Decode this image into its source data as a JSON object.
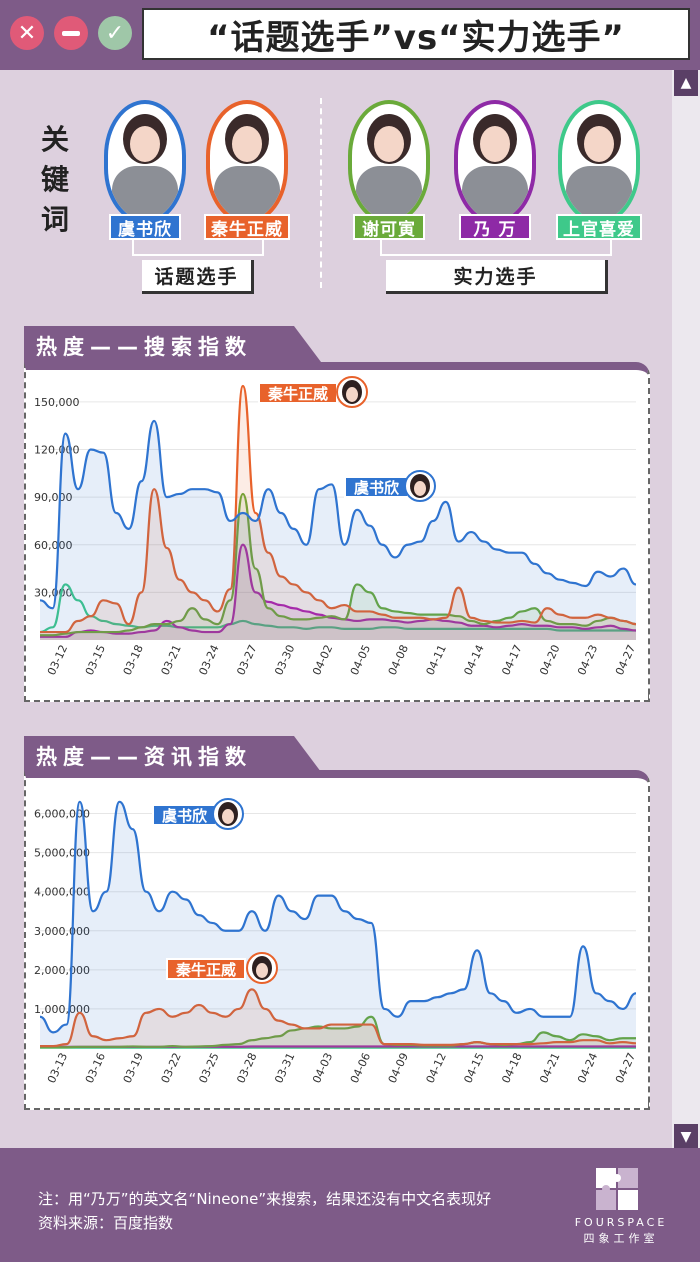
{
  "window": {
    "close_icon": "close-icon",
    "minimize_icon": "minimize-icon",
    "confirm_icon": "check-icon",
    "title": "“话题选手”vs“实力选手”"
  },
  "keyword_label": "关键词",
  "contestants": [
    {
      "name": "虞书欣",
      "color": "#2f74d0",
      "group": "topic"
    },
    {
      "name": "秦牛正威",
      "color": "#e8622b",
      "group": "topic"
    },
    {
      "name": "谢可寅",
      "color": "#6aaa3a",
      "group": "skill"
    },
    {
      "name": "乃 万",
      "color": "#8e2aa6",
      "group": "skill"
    },
    {
      "name": "上官喜爱",
      "color": "#3ec98a",
      "group": "skill"
    }
  ],
  "groups": {
    "topic": "话题选手",
    "skill": "实力选手"
  },
  "sections": {
    "search_title": "热度——搜索指数",
    "news_title": "热度——资讯指数"
  },
  "colors": {
    "purple": "#7e5b88",
    "blue": "#2f74d0",
    "orange": "#e8622b",
    "green": "#6aaa3a",
    "magenta": "#b01ab8",
    "teal": "#3ec98a"
  },
  "chart_data": [
    {
      "type": "line",
      "title": "热度——搜索指数",
      "x_ticks": [
        "03-12",
        "03-15",
        "03-18",
        "03-21",
        "03-24",
        "03-27",
        "03-30",
        "04-02",
        "04-05",
        "04-08",
        "04-11",
        "04-14",
        "04-17",
        "04-20",
        "04-23",
        "04-27"
      ],
      "x_range": [
        0,
        47
      ],
      "ylim": [
        0,
        160000
      ],
      "y_ticks": [
        "30,000",
        "60,000",
        "90,000",
        "120,000",
        "150,000"
      ],
      "y_values": [
        30000,
        60000,
        90000,
        120000,
        150000
      ],
      "grid": true,
      "series": [
        {
          "name": "虞书欣",
          "color": "#2f74d0",
          "fill": true,
          "values": [
            25000,
            20000,
            130000,
            95000,
            120000,
            118000,
            80000,
            70000,
            100000,
            138000,
            90000,
            92000,
            95000,
            95000,
            93000,
            75000,
            80000,
            75000,
            95000,
            80000,
            70000,
            60000,
            95000,
            98000,
            60000,
            82000,
            72000,
            60000,
            52000,
            60000,
            62000,
            75000,
            87000,
            62000,
            68000,
            62000,
            57000,
            55000,
            55000,
            48000,
            42000,
            38000,
            36000,
            34000,
            43000,
            40000,
            45000,
            35000
          ]
        },
        {
          "name": "秦牛正威",
          "color": "#e8622b",
          "fill": true,
          "values": [
            5000,
            5000,
            5000,
            12000,
            15000,
            25000,
            23000,
            10000,
            30000,
            95000,
            58000,
            38000,
            30000,
            25000,
            18000,
            32000,
            160000,
            80000,
            55000,
            40000,
            35000,
            30000,
            25000,
            20000,
            22000,
            18000,
            18000,
            16000,
            14000,
            14000,
            14000,
            13000,
            14000,
            33000,
            14000,
            12000,
            11000,
            11000,
            12000,
            11000,
            20000,
            16000,
            14000,
            14000,
            16000,
            14000,
            12000,
            10000
          ]
        },
        {
          "name": "谢可寅",
          "color": "#6aaa3a",
          "fill": true,
          "values": [
            3000,
            3000,
            4000,
            5000,
            5000,
            5000,
            5000,
            6000,
            8000,
            10000,
            10000,
            12000,
            20000,
            13000,
            10000,
            25000,
            92000,
            45000,
            20000,
            15000,
            13000,
            13000,
            14000,
            15000,
            13000,
            35000,
            30000,
            20000,
            18000,
            17000,
            16000,
            16000,
            16000,
            15000,
            12000,
            10000,
            12000,
            14000,
            18000,
            20000,
            12000,
            10000,
            10000,
            9000,
            12000,
            14000,
            12000,
            10000
          ]
        },
        {
          "name": "乃 万",
          "color": "#b01ab8",
          "fill": true,
          "values": [
            2000,
            2000,
            2000,
            5000,
            6000,
            5000,
            4000,
            4000,
            5000,
            6000,
            12000,
            8000,
            6000,
            5000,
            5000,
            10000,
            60000,
            30000,
            24000,
            22000,
            20000,
            18000,
            16000,
            14000,
            13000,
            12000,
            13000,
            13000,
            12000,
            11000,
            12000,
            13000,
            12000,
            11000,
            9000,
            9000,
            8000,
            9000,
            10000,
            9000,
            9000,
            8000,
            8000,
            7000,
            8000,
            9000,
            7000,
            6000
          ]
        },
        {
          "name": "上官喜爱",
          "color": "#3ec98a",
          "fill": false,
          "values": [
            5000,
            8000,
            35000,
            25000,
            15000,
            12000,
            10000,
            9000,
            8000,
            9000,
            9000,
            8000,
            8000,
            8000,
            8000,
            10000,
            12000,
            10000,
            9000,
            8000,
            8000,
            7000,
            8000,
            8000,
            7000,
            7000,
            7000,
            8000,
            8000,
            7000,
            7000,
            7000,
            7000,
            7000,
            7000,
            7000,
            7000,
            7000,
            7000,
            7000,
            7000,
            6000,
            6000,
            6000,
            6000,
            6000,
            6000,
            6000
          ]
        }
      ],
      "annotations": [
        {
          "text": "秦牛正威",
          "series": "秦牛正威"
        },
        {
          "text": "虞书欣",
          "series": "虞书欣"
        }
      ]
    },
    {
      "type": "line",
      "title": "热度——资讯指数",
      "x_ticks": [
        "03-13",
        "03-16",
        "03-19",
        "03-22",
        "03-25",
        "03-28",
        "03-31",
        "04-03",
        "04-06",
        "04-09",
        "04-12",
        "04-15",
        "04-18",
        "04-21",
        "04-24",
        "04-27"
      ],
      "x_range": [
        0,
        45
      ],
      "ylim": [
        0,
        6500000
      ],
      "y_ticks": [
        "1,000,000",
        "2,000,000",
        "3,000,000",
        "4,000,000",
        "5,000,000",
        "6,000,000"
      ],
      "y_values": [
        1000000,
        2000000,
        3000000,
        4000000,
        5000000,
        6000000
      ],
      "grid": true,
      "series": [
        {
          "name": "虞书欣",
          "color": "#2f74d0",
          "fill": true,
          "values": [
            800000,
            400000,
            600000,
            6300000,
            3500000,
            4000000,
            6300000,
            5600000,
            4000000,
            3500000,
            4000000,
            3800000,
            3400000,
            3200000,
            3000000,
            3000000,
            3500000,
            3000000,
            3900000,
            3500000,
            3300000,
            3900000,
            3900000,
            3500000,
            3300000,
            3200000,
            1000000,
            800000,
            1200000,
            1200000,
            1300000,
            1400000,
            1500000,
            2500000,
            1400000,
            1200000,
            900000,
            1000000,
            800000,
            800000,
            800000,
            2600000,
            1400000,
            1200000,
            1000000,
            1400000
          ]
        },
        {
          "name": "秦牛正威",
          "color": "#e8622b",
          "fill": true,
          "values": [
            50000,
            50000,
            100000,
            900000,
            300000,
            200000,
            250000,
            300000,
            900000,
            1000000,
            800000,
            900000,
            1100000,
            900000,
            800000,
            1000000,
            1500000,
            1000000,
            700000,
            600000,
            500000,
            500000,
            600000,
            600000,
            600000,
            600000,
            100000,
            100000,
            100000,
            80000,
            80000,
            80000,
            100000,
            150000,
            100000,
            100000,
            100000,
            100000,
            120000,
            150000,
            150000,
            200000,
            200000,
            120000,
            150000,
            120000
          ]
        },
        {
          "name": "谢可寅",
          "color": "#6aaa3a",
          "fill": true,
          "values": [
            20000,
            20000,
            20000,
            30000,
            30000,
            30000,
            30000,
            40000,
            30000,
            30000,
            50000,
            30000,
            40000,
            50000,
            80000,
            100000,
            200000,
            250000,
            300000,
            450000,
            500000,
            550000,
            500000,
            500000,
            550000,
            800000,
            100000,
            80000,
            80000,
            60000,
            60000,
            60000,
            100000,
            150000,
            100000,
            80000,
            100000,
            150000,
            400000,
            300000,
            200000,
            350000,
            300000,
            200000,
            250000,
            250000
          ]
        },
        {
          "name": "乃 万",
          "color": "#b01ab8",
          "fill": false,
          "values": [
            30000,
            30000,
            30000,
            30000,
            30000,
            30000,
            30000,
            30000,
            30000,
            30000,
            30000,
            30000,
            30000,
            30000,
            30000,
            30000,
            40000,
            40000,
            40000,
            40000,
            40000,
            40000,
            40000,
            40000,
            40000,
            40000,
            40000,
            40000,
            40000,
            40000,
            40000,
            40000,
            40000,
            40000,
            40000,
            40000,
            40000,
            40000,
            40000,
            40000,
            40000,
            40000,
            40000,
            40000,
            40000,
            40000
          ]
        },
        {
          "name": "上官喜爱",
          "color": "#3ec98a",
          "fill": false,
          "values": [
            10000,
            10000,
            10000,
            10000,
            10000,
            10000,
            10000,
            10000,
            10000,
            10000,
            10000,
            10000,
            10000,
            10000,
            10000,
            10000,
            10000,
            10000,
            10000,
            10000,
            10000,
            10000,
            10000,
            10000,
            10000,
            10000,
            10000,
            10000,
            10000,
            10000,
            10000,
            10000,
            10000,
            10000,
            10000,
            10000,
            10000,
            10000,
            10000,
            10000,
            10000,
            10000,
            10000,
            10000,
            10000,
            10000
          ]
        }
      ],
      "annotations": [
        {
          "text": "虞书欣",
          "series": "虞书欣"
        },
        {
          "text": "秦牛正威",
          "series": "秦牛正威"
        }
      ]
    }
  ],
  "footer": {
    "note": "注：用“乃万”的英文名“Nineone”来搜索，结果还没有中文名表现好",
    "source": "资料来源：百度指数",
    "logo_text": "FOURSPACE",
    "logo_sub": "四象工作室"
  }
}
